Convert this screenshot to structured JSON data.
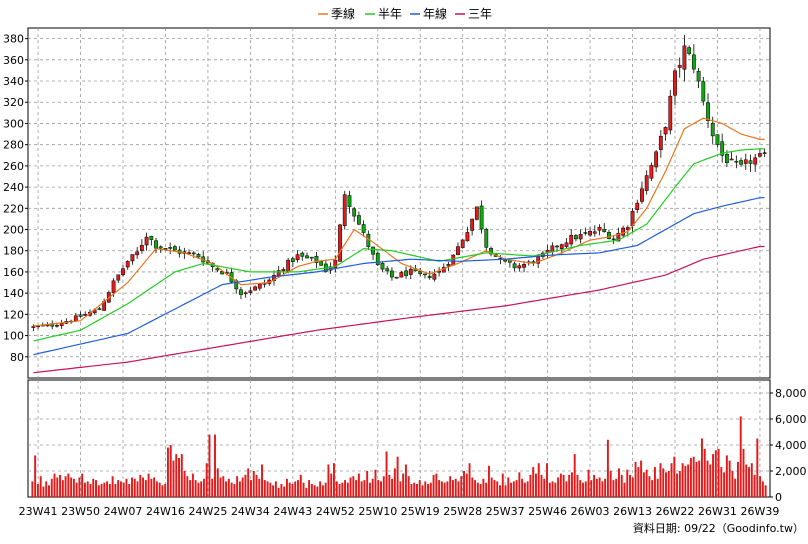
{
  "legend": [
    {
      "label": "季線",
      "color": "#e87722"
    },
    {
      "label": "半年",
      "color": "#22cc22"
    },
    {
      "label": "年線",
      "color": "#1f5fd8"
    },
    {
      "label": "三年",
      "color": "#c8145a"
    }
  ],
  "credit": "資料日期: 09/22（Goodinfo.tw）",
  "colors": {
    "up": "#e11b1b",
    "down": "#13a313",
    "volume": "#e11b1b",
    "grid": "#9a9a9a"
  },
  "chart_data": [
    {
      "type": "candlestick",
      "name": "price",
      "ylim": [
        60,
        390
      ],
      "yticks": [
        80,
        100,
        120,
        140,
        160,
        180,
        200,
        220,
        240,
        260,
        280,
        300,
        320,
        340,
        360,
        380
      ],
      "xticks": [
        "23W41",
        "23W50",
        "24W07",
        "24W16",
        "24W25",
        "24W34",
        "24W43",
        "24W52",
        "25W10",
        "25W19",
        "25W28",
        "25W37",
        "25W46",
        "26W03",
        "26W13",
        "26W22",
        "26W31",
        "26W39"
      ],
      "close_anchors": [
        [
          0,
          108
        ],
        [
          4,
          110
        ],
        [
          8,
          115
        ],
        [
          14,
          125
        ],
        [
          17,
          150
        ],
        [
          20,
          170
        ],
        [
          22,
          178
        ],
        [
          24,
          195
        ],
        [
          26,
          185
        ],
        [
          30,
          180
        ],
        [
          35,
          175
        ],
        [
          38,
          165
        ],
        [
          41,
          158
        ],
        [
          44,
          140
        ],
        [
          47,
          145
        ],
        [
          50,
          152
        ],
        [
          53,
          165
        ],
        [
          56,
          175
        ],
        [
          60,
          170
        ],
        [
          62,
          162
        ],
        [
          64,
          170
        ],
        [
          66,
          235
        ],
        [
          68,
          215
        ],
        [
          70,
          195
        ],
        [
          73,
          165
        ],
        [
          76,
          155
        ],
        [
          80,
          160
        ],
        [
          83,
          155
        ],
        [
          86,
          160
        ],
        [
          89,
          175
        ],
        [
          92,
          200
        ],
        [
          94,
          220
        ],
        [
          96,
          185
        ],
        [
          99,
          170
        ],
        [
          102,
          165
        ],
        [
          105,
          168
        ],
        [
          108,
          175
        ],
        [
          111,
          185
        ],
        [
          114,
          192
        ],
        [
          117,
          195
        ],
        [
          120,
          200
        ],
        [
          123,
          192
        ],
        [
          126,
          205
        ],
        [
          129,
          240
        ],
        [
          132,
          270
        ],
        [
          134,
          300
        ],
        [
          136,
          345
        ],
        [
          138,
          370
        ],
        [
          140,
          355
        ],
        [
          142,
          320
        ],
        [
          144,
          290
        ],
        [
          146,
          270
        ],
        [
          148,
          262
        ],
        [
          150,
          258
        ],
        [
          152,
          265
        ],
        [
          154,
          268
        ]
      ],
      "series": [
        {
          "name": "季線",
          "color": "#e87722",
          "anchors": [
            [
              0,
              109
            ],
            [
              10,
              114
            ],
            [
              20,
              150
            ],
            [
              26,
              182
            ],
            [
              32,
              178
            ],
            [
              38,
              168
            ],
            [
              44,
              148
            ],
            [
              50,
              150
            ],
            [
              56,
              165
            ],
            [
              60,
              170
            ],
            [
              64,
              172
            ],
            [
              68,
              200
            ],
            [
              72,
              188
            ],
            [
              78,
              168
            ],
            [
              84,
              158
            ],
            [
              90,
              168
            ],
            [
              96,
              180
            ],
            [
              100,
              172
            ],
            [
              106,
              168
            ],
            [
              112,
              178
            ],
            [
              118,
              190
            ],
            [
              122,
              193
            ],
            [
              126,
              198
            ],
            [
              130,
              220
            ],
            [
              134,
              255
            ],
            [
              138,
              295
            ],
            [
              142,
              305
            ],
            [
              146,
              300
            ],
            [
              150,
              290
            ],
            [
              154,
              285
            ]
          ]
        },
        {
          "name": "半年",
          "color": "#22cc22",
          "anchors": [
            [
              0,
              95
            ],
            [
              10,
              105
            ],
            [
              20,
              130
            ],
            [
              30,
              160
            ],
            [
              36,
              168
            ],
            [
              46,
              160
            ],
            [
              56,
              160
            ],
            [
              64,
              165
            ],
            [
              70,
              182
            ],
            [
              76,
              180
            ],
            [
              86,
              170
            ],
            [
              96,
              178
            ],
            [
              106,
              175
            ],
            [
              116,
              185
            ],
            [
              124,
              190
            ],
            [
              130,
              205
            ],
            [
              136,
              240
            ],
            [
              140,
              262
            ],
            [
              146,
              272
            ],
            [
              150,
              275
            ],
            [
              154,
              276
            ]
          ]
        },
        {
          "name": "年線",
          "color": "#1f5fd8",
          "anchors": [
            [
              0,
              82
            ],
            [
              20,
              102
            ],
            [
              30,
              125
            ],
            [
              40,
              148
            ],
            [
              50,
              155
            ],
            [
              60,
              160
            ],
            [
              70,
              168
            ],
            [
              80,
              172
            ],
            [
              90,
              170
            ],
            [
              100,
              172
            ],
            [
              110,
              176
            ],
            [
              120,
              178
            ],
            [
              128,
              185
            ],
            [
              134,
              200
            ],
            [
              140,
              215
            ],
            [
              146,
              222
            ],
            [
              154,
              230
            ]
          ]
        },
        {
          "name": "三年",
          "color": "#c8145a",
          "anchors": [
            [
              0,
              65
            ],
            [
              20,
              75
            ],
            [
              40,
              90
            ],
            [
              60,
              105
            ],
            [
              80,
              117
            ],
            [
              100,
              128
            ],
            [
              120,
              143
            ],
            [
              134,
              157
            ],
            [
              142,
              172
            ],
            [
              154,
              184
            ]
          ]
        }
      ]
    },
    {
      "type": "bar",
      "name": "volume",
      "ylim": [
        0,
        9000
      ],
      "yticks": [
        0,
        2000,
        4000,
        6000,
        8000
      ],
      "ytick_labels": [
        "0",
        "2,000",
        "4,000",
        "6,000",
        "8,000"
      ],
      "values": [
        1200,
        3200,
        1000,
        1600,
        800,
        1200,
        900,
        1400,
        1800,
        1500,
        1700,
        1300,
        1600,
        1800,
        1500,
        1400,
        1100,
        1500,
        1800,
        1100,
        1200,
        1000,
        1400,
        1300,
        900,
        1000,
        1100,
        1200,
        1000,
        1600,
        1000,
        1300,
        1200,
        1100,
        1400,
        1000,
        1500,
        1400,
        1200,
        1700,
        1500,
        1300,
        1800,
        1400,
        1500,
        1200,
        1100,
        900,
        1000,
        3800,
        4000,
        2800,
        3300,
        3000,
        3300,
        2000,
        1600,
        1300,
        1800,
        1300,
        1100,
        1200,
        1400,
        2600,
        4800,
        1400,
        4800,
        2200,
        1500,
        1600,
        1200,
        1400,
        1100,
        1000,
        1600,
        1200,
        1500,
        1700,
        2200,
        1300,
        2000,
        1700,
        1400,
        2500,
        1300,
        1200,
        1100,
        900,
        1200,
        700,
        1000,
        800,
        1400,
        1100,
        1000,
        1200,
        1300,
        1700,
        1100,
        700,
        1300,
        1000,
        900,
        800,
        1200,
        900,
        1100,
        2500,
        1800,
        2600,
        1200,
        1000,
        1100,
        1300,
        1100,
        1500,
        1600,
        1300,
        1800,
        1200,
        1300,
        2000,
        1100,
        1400,
        2100,
        1300,
        1200,
        1600,
        3500,
        1700,
        1400,
        2200,
        3100,
        1200,
        1800,
        2500,
        1600,
        1000,
        1100,
        1000,
        1300,
        900,
        1200,
        1000,
        1100,
        1700,
        1800,
        1300,
        1200,
        1100,
        1200,
        1600,
        1300,
        1400,
        1200,
        1600,
        2000,
        1800,
        2600,
        1500,
        1300,
        1100,
        1000,
        1400,
        1100,
        2400,
        1500,
        1300,
        1200,
        900,
        1800,
        900,
        1500,
        1100,
        1200,
        1300,
        1900,
        1400,
        1100,
        1200,
        1700,
        2300,
        1800,
        2600,
        1700,
        1400,
        2600,
        1100,
        1200,
        1100,
        1500,
        1800,
        1700,
        1200,
        1700,
        1900,
        3300,
        1700,
        1300,
        1100,
        1200,
        2100,
        1300,
        1700,
        1400,
        1500,
        1200,
        1400,
        4400,
        2000,
        1300,
        1400,
        2200,
        1700,
        1100,
        2100,
        1700,
        1500,
        2700,
        2300,
        2800,
        1900,
        2100,
        1600,
        1300,
        2300,
        1400,
        2600,
        2200,
        1900,
        2000,
        2600,
        3100,
        1800,
        2000,
        2600,
        2400,
        2500,
        3000,
        3100,
        2700,
        2800,
        4500,
        3700,
        2800,
        2500,
        3300,
        3600,
        3700,
        2300,
        1900,
        3200,
        2800,
        2000,
        1400,
        2700,
        6200,
        3700,
        2500,
        2300,
        2600,
        1700,
        4500,
        1600,
        1200,
        900
      ]
    }
  ]
}
